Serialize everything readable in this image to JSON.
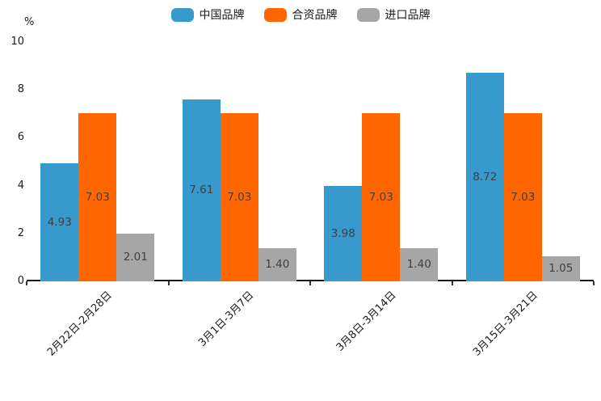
{
  "chart_data": {
    "type": "bar",
    "title": "",
    "unit_label": "%",
    "categories": [
      "2月22日-2月28日",
      "3月1日-3月7日",
      "3月8日-3月14日",
      "3月15日-3月21日"
    ],
    "series": [
      {
        "name": "中国品牌",
        "color": "#3899cc",
        "values": [
          4.93,
          7.61,
          3.98,
          8.72
        ]
      },
      {
        "name": "合资品牌",
        "color": "#ff6600",
        "values": [
          7.03,
          7.03,
          7.03,
          7.03
        ]
      },
      {
        "name": "进口品牌",
        "color": "#a6a6a6",
        "values": [
          2.01,
          1.4,
          1.4,
          1.05
        ]
      }
    ],
    "ylim": [
      0,
      10
    ],
    "yticks": [
      0,
      2,
      4,
      6,
      8,
      10
    ],
    "grid": false,
    "legend_position": "top",
    "value_label_format": "0.00",
    "bar_label_placement": "inside-center"
  },
  "colors": {
    "background": "#ffffff",
    "axis": "#1a1a1a",
    "tick": "#333333",
    "bar_value_text": "#3f3f3f"
  }
}
